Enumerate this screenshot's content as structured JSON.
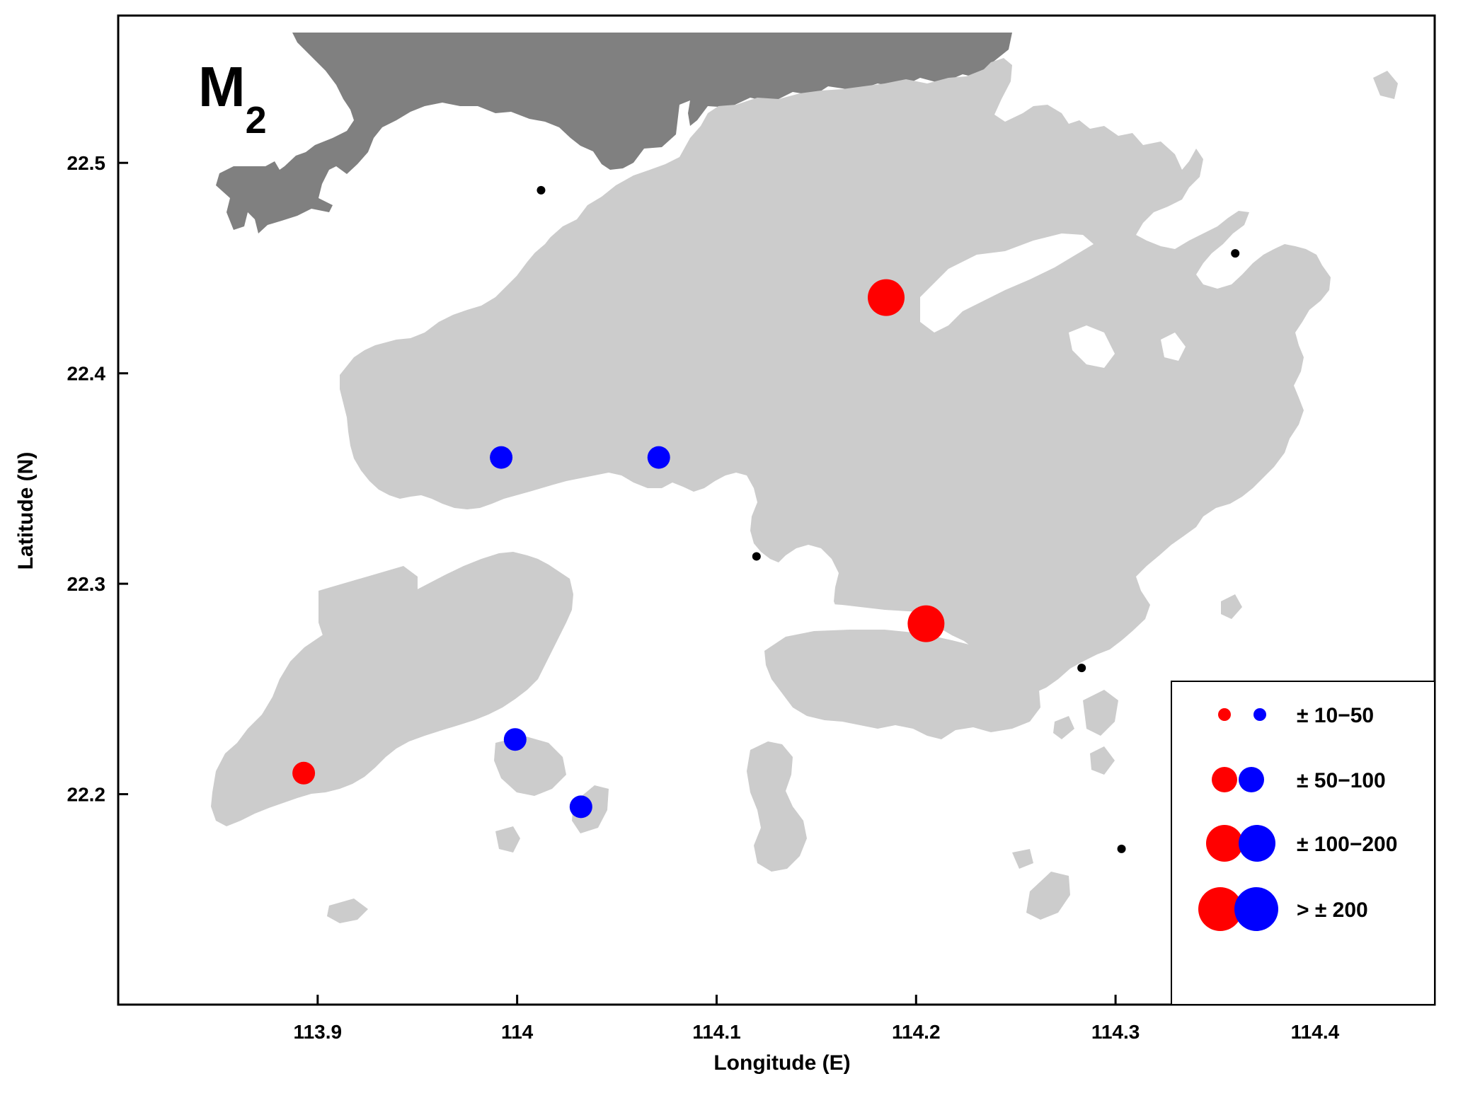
{
  "panel": {
    "title": "M",
    "subscript": "2"
  },
  "x_axis": {
    "label": "Longitude (E)",
    "ticks": [
      "113.9",
      "114",
      "114.1",
      "114.2",
      "114.3",
      "114.4"
    ]
  },
  "y_axis": {
    "label": "Latitude (N)",
    "ticks": [
      "22.5",
      "22.4",
      "22.3",
      "22.2"
    ]
  },
  "legend": {
    "entries": [
      {
        "label": "± 10−50",
        "size_class": 1
      },
      {
        "label": "± 50−100",
        "size_class": 2
      },
      {
        "label": "± 100−200",
        "size_class": 3
      },
      {
        "label": "> ± 200",
        "size_class": 4
      }
    ]
  },
  "colors": {
    "positive": "#ff0000",
    "negative": "#0000ff",
    "land": "#cccccc",
    "mainland_china": "#808080",
    "station": "#000000"
  },
  "chart_data": {
    "type": "scatter",
    "xlabel": "Longitude (E)",
    "ylabel": "Latitude (N)",
    "xlim": [
      113.8,
      114.46
    ],
    "ylim": [
      22.1,
      22.57
    ],
    "xticks": [
      113.9,
      114.0,
      114.1,
      114.2,
      114.3,
      114.4
    ],
    "yticks": [
      22.2,
      22.3,
      22.4,
      22.5
    ],
    "legend_position": "bottom-right",
    "series": [
      {
        "color": "red",
        "points": [
          {
            "lon": 114.185,
            "lat": 22.436,
            "size_class": 3
          },
          {
            "lon": 114.205,
            "lat": 22.281,
            "size_class": 3
          },
          {
            "lon": 113.893,
            "lat": 22.21,
            "size_class": 1
          }
        ]
      },
      {
        "color": "blue",
        "points": [
          {
            "lon": 113.992,
            "lat": 22.36,
            "size_class": 1
          },
          {
            "lon": 114.071,
            "lat": 22.36,
            "size_class": 1
          },
          {
            "lon": 113.999,
            "lat": 22.226,
            "size_class": 1
          },
          {
            "lon": 114.032,
            "lat": 22.194,
            "size_class": 1
          }
        ]
      },
      {
        "color": "black",
        "points": [
          {
            "lon": 114.012,
            "lat": 22.487
          },
          {
            "lon": 114.12,
            "lat": 22.313
          },
          {
            "lon": 114.283,
            "lat": 22.26
          },
          {
            "lon": 114.303,
            "lat": 22.174
          },
          {
            "lon": 114.36,
            "lat": 22.457
          }
        ]
      }
    ]
  }
}
